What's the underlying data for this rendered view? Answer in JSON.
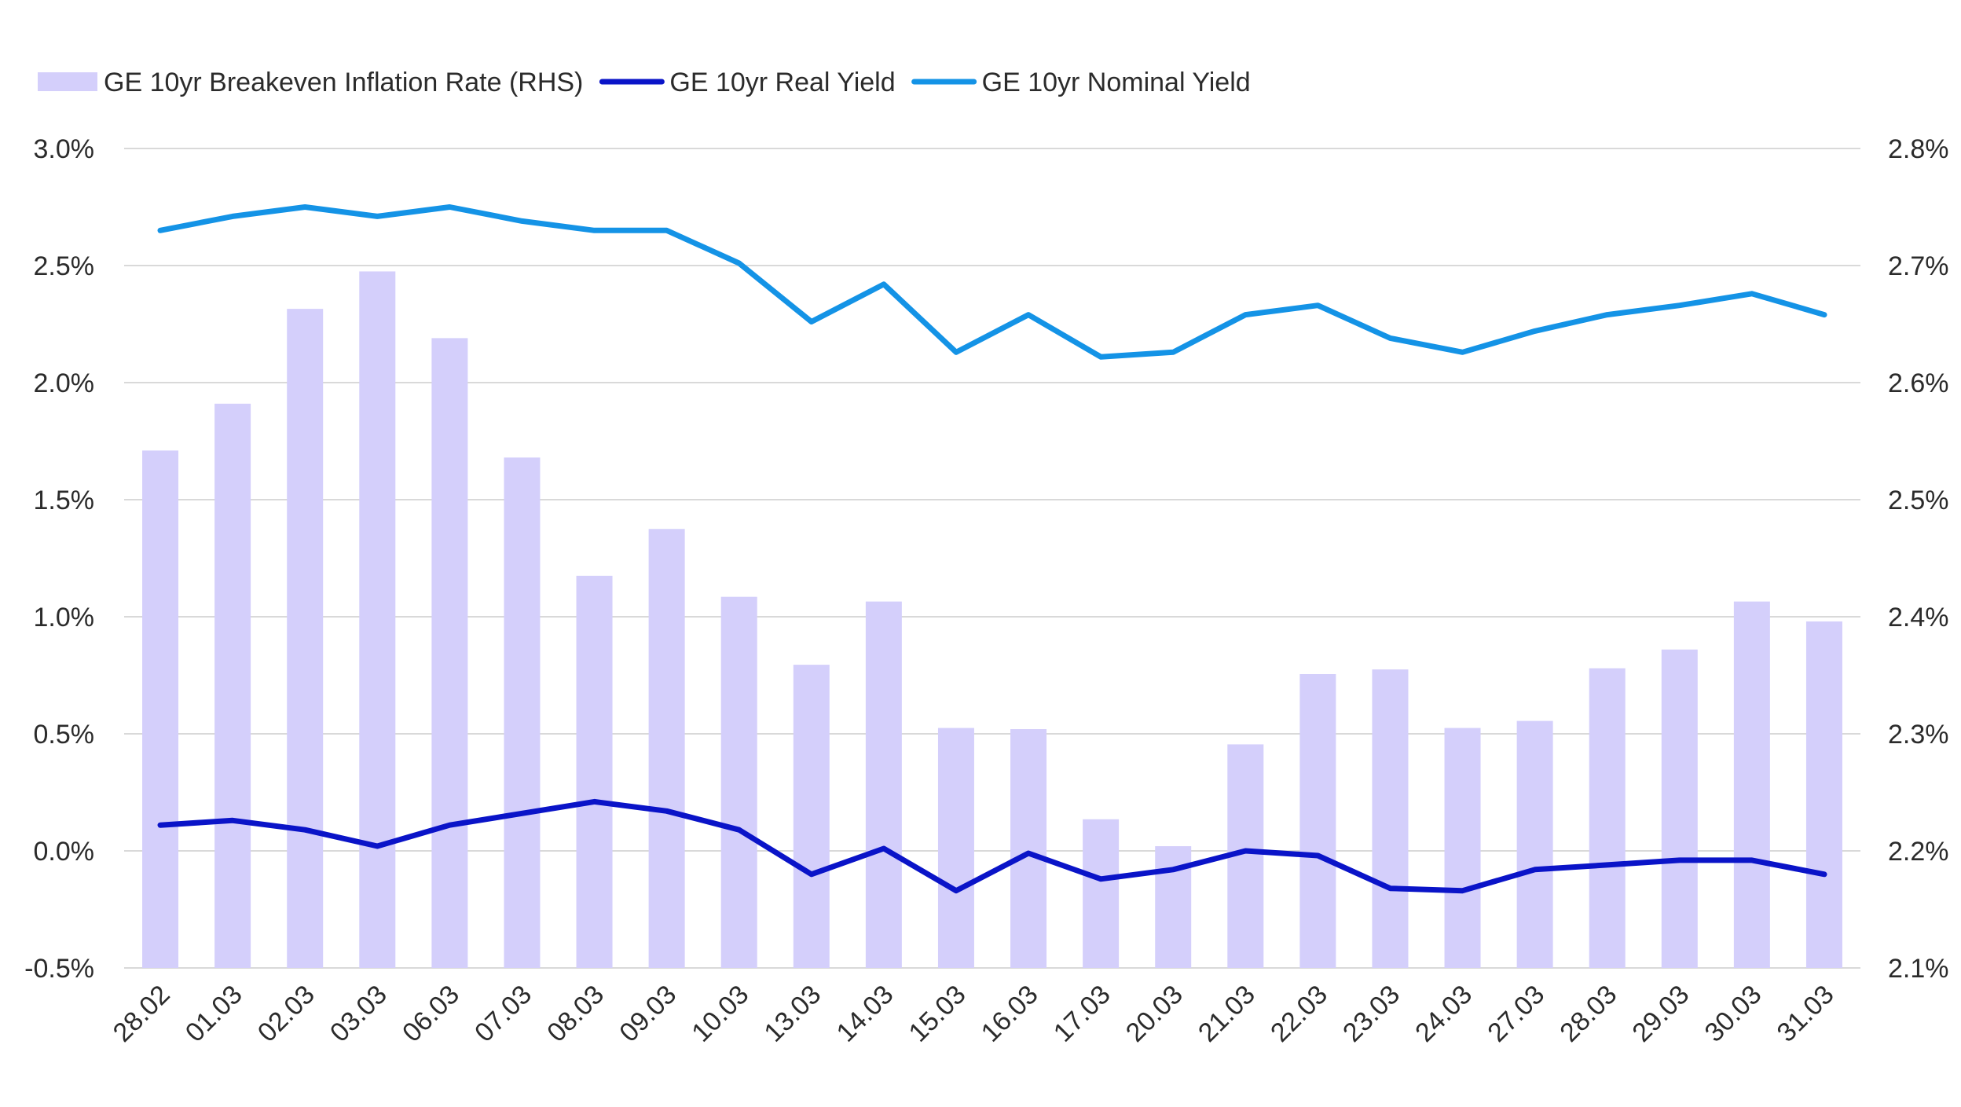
{
  "chart_data": {
    "type": "bar",
    "categories": [
      "28.02",
      "01.03",
      "02.03",
      "03.03",
      "06.03",
      "07.03",
      "08.03",
      "09.03",
      "10.03",
      "13.03",
      "14.03",
      "15.03",
      "16.03",
      "17.03",
      "20.03",
      "21.03",
      "22.03",
      "23.03",
      "24.03",
      "27.03",
      "28.03",
      "29.03",
      "30.03",
      "31.03"
    ],
    "legend": [
      {
        "label": "GE 10yr Breakeven Inflation Rate (RHS)",
        "color": "#d4cffb",
        "kind": "bar"
      },
      {
        "label": "GE 10yr Real Yield",
        "color": "#0a14c8",
        "kind": "line"
      },
      {
        "label": "GE 10yr Nominal Yield",
        "color": "#1493e6",
        "kind": "line"
      }
    ],
    "series": [
      {
        "name": "GE 10yr Breakeven Inflation Rate (RHS)",
        "axis": "right",
        "type": "bar",
        "color": "#d4cffb",
        "values": [
          2.542,
          2.582,
          2.663,
          2.695,
          2.638,
          2.536,
          2.435,
          2.475,
          2.417,
          2.359,
          2.413,
          2.305,
          2.304,
          2.227,
          2.204,
          2.291,
          2.351,
          2.355,
          2.305,
          2.311,
          2.356,
          2.372,
          2.413,
          2.396
        ]
      },
      {
        "name": "GE 10yr Real Yield",
        "axis": "left",
        "type": "line",
        "color": "#0a14c8",
        "values": [
          0.11,
          0.13,
          0.09,
          0.02,
          0.11,
          0.16,
          0.21,
          0.17,
          0.09,
          -0.1,
          0.01,
          -0.17,
          -0.01,
          -0.12,
          -0.08,
          0.0,
          -0.02,
          -0.16,
          -0.17,
          -0.08,
          -0.06,
          -0.04,
          -0.04,
          -0.1
        ]
      },
      {
        "name": "GE 10yr Nominal Yield",
        "axis": "left",
        "type": "line",
        "color": "#1493e6",
        "values": [
          2.65,
          2.71,
          2.75,
          2.71,
          2.75,
          2.69,
          2.65,
          2.65,
          2.51,
          2.26,
          2.42,
          2.13,
          2.29,
          2.11,
          2.13,
          2.29,
          2.33,
          2.19,
          2.13,
          2.22,
          2.29,
          2.33,
          2.38,
          2.29
        ]
      }
    ],
    "y_left": {
      "min": -0.5,
      "max": 3.0,
      "ticks": [
        "-0.5%",
        "0.0%",
        "0.5%",
        "1.0%",
        "1.5%",
        "2.0%",
        "2.5%",
        "3.0%"
      ]
    },
    "y_right": {
      "min": 2.1,
      "max": 2.8,
      "ticks": [
        "2.1%",
        "2.2%",
        "2.3%",
        "2.4%",
        "2.5%",
        "2.6%",
        "2.7%",
        "2.8%"
      ]
    },
    "grid": true,
    "legend_position": "top-left",
    "gridline_color": "#d9d9d9"
  }
}
